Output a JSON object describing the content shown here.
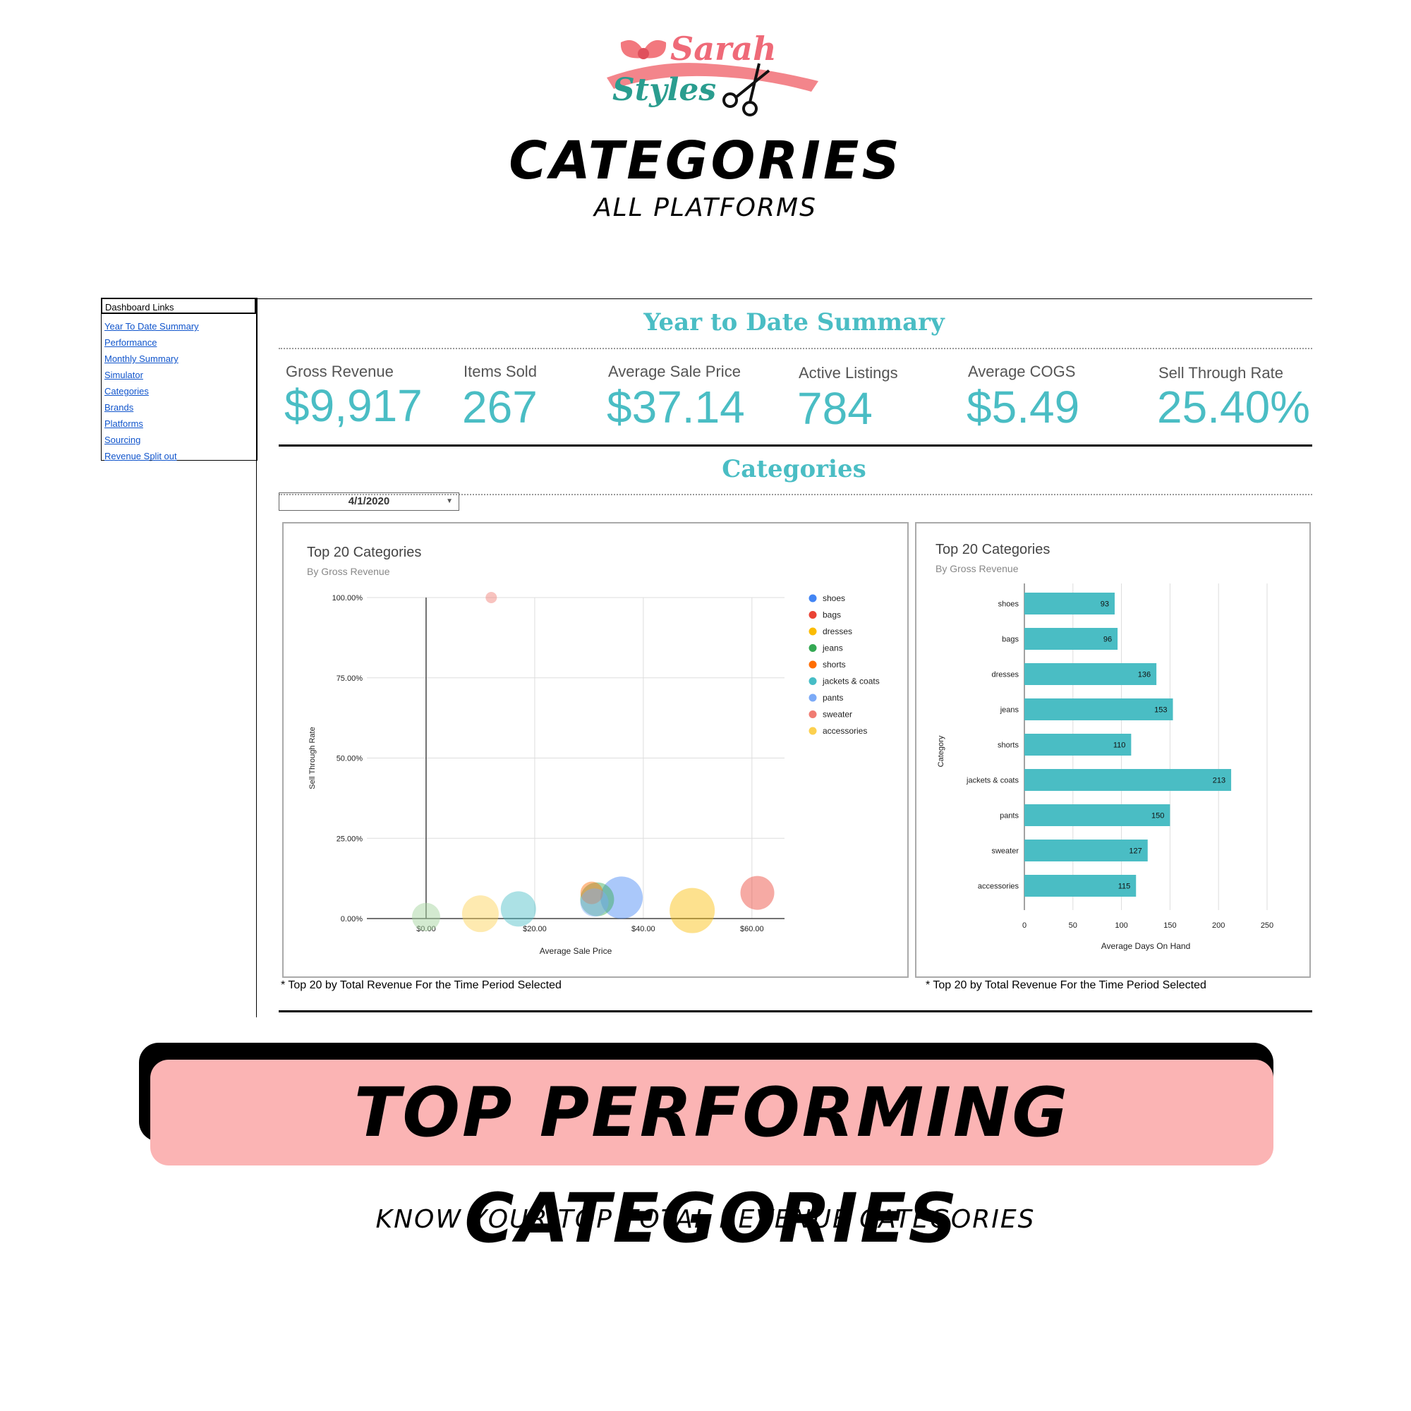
{
  "logo": {
    "line1": "Sarah",
    "line2": "Styles",
    "ribbon_color": "#f2787e",
    "text_color_1": "#ef6a78",
    "text_color_2": "#2a9d8f"
  },
  "header": {
    "title": "CATEGORIES",
    "subtitle": "ALL PLATFORMS"
  },
  "sidebar": {
    "title": "Dashboard Links",
    "links": [
      "Year To Date Summary",
      "Performance",
      "Monthly Summary",
      "Simulator",
      "Categories",
      "Brands",
      "Platforms",
      "Sourcing",
      "Revenue Split out"
    ]
  },
  "summary": {
    "title": "Year to Date Summary",
    "kpis": [
      {
        "label": "Gross Revenue",
        "value": "$9,917"
      },
      {
        "label": "Items Sold",
        "value": "267"
      },
      {
        "label": "Average Sale Price",
        "value": "$37.14"
      },
      {
        "label": "Active Listings",
        "value": "784"
      },
      {
        "label": "Average COGS",
        "value": "$5.49"
      },
      {
        "label": "Sell Through Rate",
        "value": "25.40%"
      }
    ]
  },
  "categories_section": {
    "title": "Categories",
    "date_filter": "4/1/2020"
  },
  "accent_color": "#4abdc4",
  "chart_data": [
    {
      "type": "scatter",
      "title": "Top 20 Categories",
      "subtitle": "By Gross Revenue",
      "xlabel": "Average Sale Price",
      "ylabel": "Sell Through Rate",
      "xticks": [
        "$0.00",
        "$20.00",
        "$40.00",
        "$60.00"
      ],
      "yticks": [
        "0.00%",
        "25.00%",
        "50.00%",
        "75.00%",
        "100.00%"
      ],
      "xlim": [
        -20,
        66
      ],
      "ylim": [
        0,
        100
      ],
      "legend_position": "right",
      "series": [
        {
          "name": "shoes",
          "color": "#4285f4",
          "points": [
            {
              "x": 36,
              "y": 6.5,
              "r": 30
            }
          ]
        },
        {
          "name": "bags",
          "color": "#ea4335",
          "points": [
            {
              "x": 61,
              "y": 8,
              "r": 24
            }
          ]
        },
        {
          "name": "dresses",
          "color": "#fbbc04",
          "points": [
            {
              "x": 49,
              "y": 2.5,
              "r": 32
            }
          ]
        },
        {
          "name": "jeans",
          "color": "#34a853",
          "points": [
            {
              "x": 31.5,
              "y": 6,
              "r": 24
            }
          ]
        },
        {
          "name": "shorts",
          "color": "#ff6d01",
          "points": [
            {
              "x": 30.5,
              "y": 8,
              "r": 16
            }
          ]
        },
        {
          "name": "jackets & coats",
          "color": "#46bdc6",
          "points": [
            {
              "x": 17,
              "y": 3,
              "r": 25
            }
          ]
        },
        {
          "name": "pants",
          "color": "#7baaf7",
          "points": [
            {
              "x": 31,
              "y": 5,
              "r": 20
            }
          ]
        },
        {
          "name": "sweater",
          "color": "#f07b72",
          "points": [
            {
              "x": 12,
              "y": 100,
              "r": 8
            }
          ]
        },
        {
          "name": "accessories",
          "color": "#fcd04f",
          "points": [
            {
              "x": 10,
              "y": 1.5,
              "r": 26
            }
          ]
        }
      ],
      "extra_points": [
        {
          "x": 0,
          "y": 0.5,
          "color": "#a8d5a2",
          "r": 20
        }
      ],
      "footnote": "* Top 20 by Total Revenue For the Time Period Selected"
    },
    {
      "type": "bar",
      "orientation": "horizontal",
      "title": "Top 20 Categories",
      "subtitle": "By Gross Revenue",
      "xlabel": "Average Days On Hand",
      "ylabel": "Category",
      "categories": [
        "shoes",
        "bags",
        "dresses",
        "jeans",
        "shorts",
        "jackets & coats",
        "pants",
        "sweater",
        "accessories"
      ],
      "values": [
        93,
        96,
        136,
        153,
        110,
        213,
        150,
        127,
        115
      ],
      "xticks": [
        "0",
        "50",
        "100",
        "150",
        "200",
        "250"
      ],
      "xlim": [
        0,
        250
      ],
      "bar_color": "#4abdc4",
      "footnote": "* Top 20 by Total Revenue For the Time Period Selected"
    }
  ],
  "banner": {
    "text": "TOP PERFORMING CATEGORIES",
    "bg_color": "#fbb4b4"
  },
  "tagline": "KNOW YOUR TOP TOTAL REVENUE CATEGORIES"
}
